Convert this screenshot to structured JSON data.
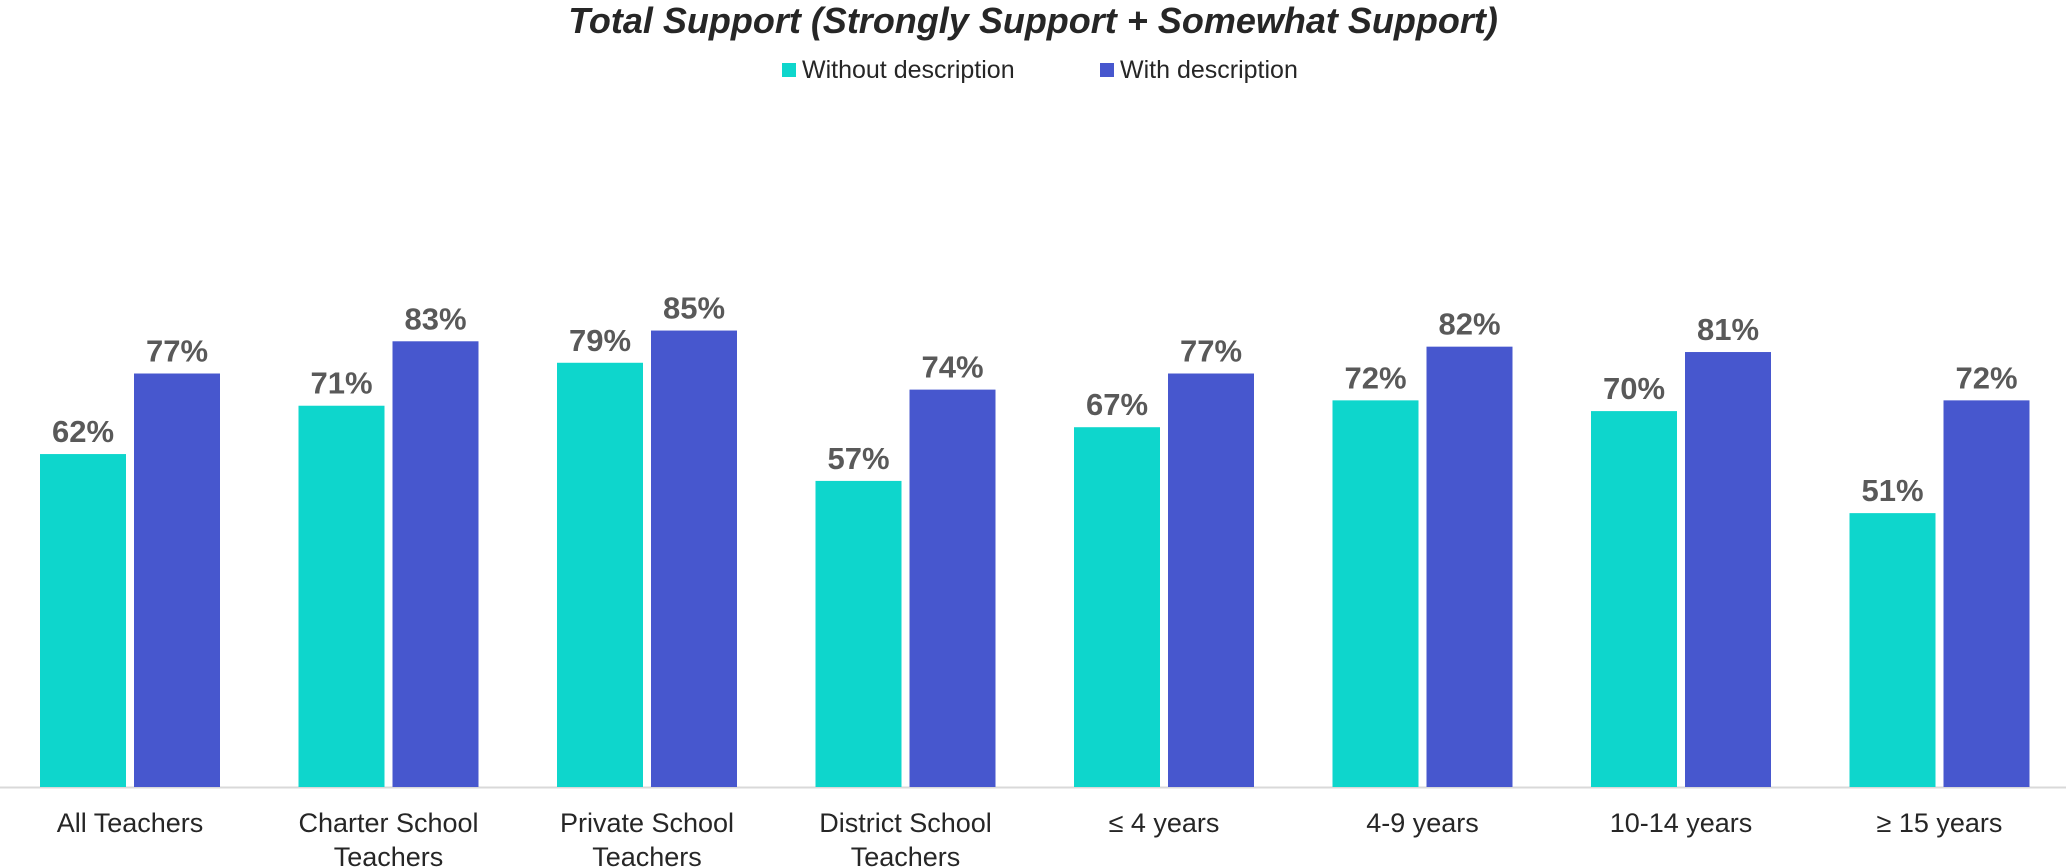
{
  "chart_data": {
    "type": "bar",
    "title": "Total Support (Strongly Support + Somewhat Support)",
    "categories": [
      "All Teachers",
      "Charter School Teachers",
      "Private School Teachers",
      "District School Teachers",
      "≤ 4 years",
      "4-9 years",
      "10-14 years",
      "≥ 15 years"
    ],
    "series": [
      {
        "name": "Without description",
        "color": "#0ED6CC",
        "values": [
          62,
          71,
          79,
          57,
          67,
          72,
          70,
          51
        ],
        "labels": [
          "62%",
          "71%",
          "79%",
          "57%",
          "67%",
          "72%",
          "70%",
          "51%"
        ]
      },
      {
        "name": "With description",
        "color": "#4757CE",
        "values": [
          77,
          83,
          85,
          74,
          77,
          82,
          81,
          72
        ],
        "labels": [
          "77%",
          "83%",
          "85%",
          "74%",
          "77%",
          "82%",
          "81%",
          "72%"
        ]
      }
    ],
    "ylim": [
      0,
      100
    ],
    "grid": false,
    "legend_position": "top-center",
    "xlabel": "",
    "ylabel": ""
  }
}
